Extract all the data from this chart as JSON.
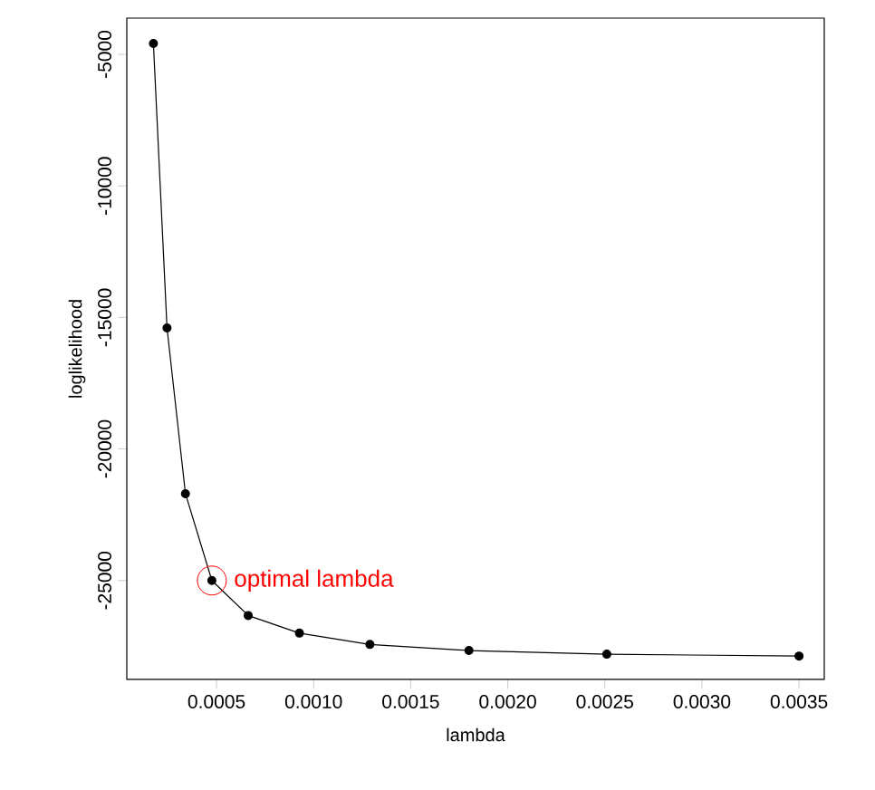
{
  "chart_data": {
    "type": "line",
    "xlabel": "lambda",
    "ylabel": "loglikelihood",
    "x": [
      0.000175,
      0.000245,
      0.00034,
      0.000476,
      0.000663,
      0.000927,
      0.00129,
      0.0018,
      0.00251,
      0.0035
    ],
    "series": [
      {
        "color": "#000000",
        "values": [
          -4590,
          -15400,
          -21700,
          -25000,
          -26330,
          -27000,
          -27430,
          -27660,
          -27800,
          -27870
        ]
      }
    ],
    "xlim": [
      3.8e-05,
      0.00363
    ],
    "ylim": [
      -28760,
      -3623
    ],
    "xticks": [
      {
        "value": 0.0005,
        "label": "0.0005"
      },
      {
        "value": 0.001,
        "label": "0.0010"
      },
      {
        "value": 0.0015,
        "label": "0.0015"
      },
      {
        "value": 0.002,
        "label": "0.0020"
      },
      {
        "value": 0.0025,
        "label": "0.0025"
      },
      {
        "value": 0.003,
        "label": "0.0030"
      },
      {
        "value": 0.0035,
        "label": "0.0035"
      }
    ],
    "yticks": [
      -5000,
      -10000,
      -15000,
      -20000,
      -25000
    ],
    "annotations": [
      {
        "text": "optimal lambda",
        "x": 0.000476,
        "y": -25000
      }
    ],
    "marker": "circle",
    "line_style": "solid"
  }
}
